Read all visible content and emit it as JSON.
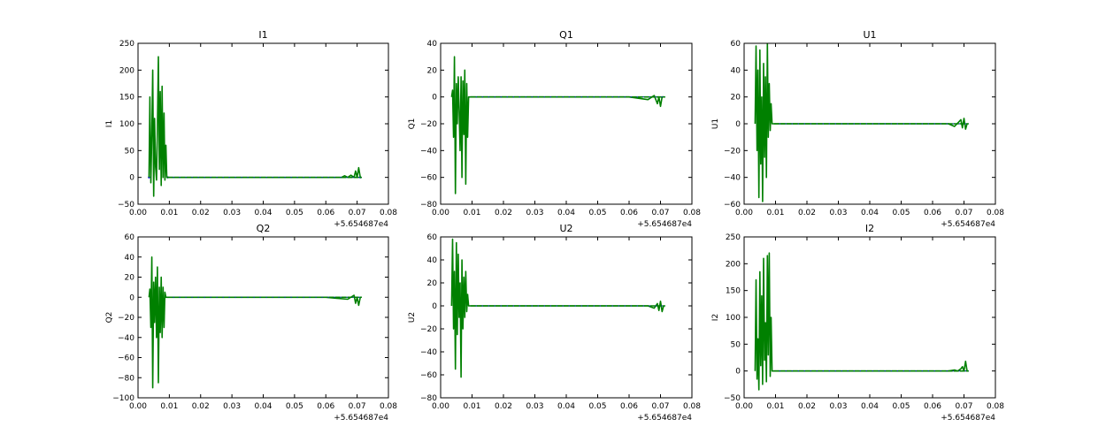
{
  "chart_data": [
    {
      "type": "line",
      "title": "I1",
      "ylabel": "I1",
      "xlabel": "",
      "x_offset_label": "+5.654687e4",
      "xlim": [
        0.0,
        0.08
      ],
      "ylim": [
        -50,
        250
      ],
      "xticks": [
        "0.00",
        "0.01",
        "0.02",
        "0.03",
        "0.04",
        "0.05",
        "0.06",
        "0.07",
        "0.08"
      ],
      "yticks": [
        "−50",
        "0",
        "50",
        "100",
        "150",
        "200",
        "250"
      ],
      "grid": false,
      "series": [
        {
          "color": "#0000ff",
          "style": "points",
          "x": [
            0.0035,
            0.0095,
            0.071
          ],
          "y": [
            0,
            0,
            0
          ],
          "note_hidden": false
        },
        {
          "color": "#008000",
          "style": "line",
          "x": [
            0.0035,
            0.0038,
            0.0041,
            0.0044,
            0.0047,
            0.005,
            0.0053,
            0.0056,
            0.0059,
            0.0062,
            0.0065,
            0.0068,
            0.0071,
            0.0074,
            0.0077,
            0.008,
            0.0083,
            0.0086,
            0.0089,
            0.0092,
            0.0095,
            0.02,
            0.04,
            0.06,
            0.065,
            0.066,
            0.067,
            0.068,
            0.069,
            0.0695,
            0.07,
            0.0705,
            0.071
          ],
          "y": [
            0,
            150,
            -10,
            80,
            200,
            -35,
            110,
            20,
            -5,
            90,
            225,
            15,
            160,
            -15,
            170,
            0,
            120,
            -5,
            60,
            0,
            0,
            0,
            0,
            0,
            0,
            3,
            0,
            4,
            0,
            12,
            0,
            18,
            0
          ]
        }
      ]
    },
    {
      "type": "line",
      "title": "Q1",
      "ylabel": "Q1",
      "xlabel": "",
      "x_offset_label": "+5.654687e4",
      "xlim": [
        0.0,
        0.08
      ],
      "ylim": [
        -80,
        40
      ],
      "xticks": [
        "0.00",
        "0.01",
        "0.02",
        "0.03",
        "0.04",
        "0.05",
        "0.06",
        "0.07",
        "0.08"
      ],
      "yticks": [
        "−80",
        "−60",
        "−40",
        "−20",
        "0",
        "20",
        "40"
      ],
      "grid": false,
      "series": [
        {
          "color": "#008000",
          "style": "line",
          "x": [
            0.0035,
            0.0038,
            0.0041,
            0.0044,
            0.0047,
            0.005,
            0.0053,
            0.0056,
            0.0059,
            0.0062,
            0.0065,
            0.0068,
            0.0071,
            0.0074,
            0.0077,
            0.008,
            0.0083,
            0.0086,
            0.0089,
            0.0095,
            0.02,
            0.04,
            0.06,
            0.066,
            0.068,
            0.069,
            0.0695,
            0.07,
            0.0705,
            0.071
          ],
          "y": [
            0,
            5,
            -30,
            30,
            -72,
            10,
            -20,
            15,
            -10,
            -40,
            15,
            -60,
            12,
            -28,
            20,
            -65,
            10,
            -30,
            0,
            0,
            0,
            0,
            0,
            -2,
            1,
            -5,
            0,
            -7,
            0,
            0
          ]
        }
      ]
    },
    {
      "type": "line",
      "title": "U1",
      "ylabel": "U1",
      "xlabel": "",
      "x_offset_label": "+5.654687e4",
      "xlim": [
        0.0,
        0.08
      ],
      "ylim": [
        -60,
        60
      ],
      "xticks": [
        "0.00",
        "0.01",
        "0.02",
        "0.03",
        "0.04",
        "0.05",
        "0.06",
        "0.07",
        "0.08"
      ],
      "yticks": [
        "−60",
        "−40",
        "−20",
        "0",
        "20",
        "40",
        "60"
      ],
      "grid": false,
      "series": [
        {
          "color": "#008000",
          "style": "line",
          "x": [
            0.0035,
            0.0038,
            0.0041,
            0.0044,
            0.0047,
            0.005,
            0.0053,
            0.0056,
            0.0059,
            0.0062,
            0.0065,
            0.0068,
            0.0071,
            0.0074,
            0.0077,
            0.008,
            0.0083,
            0.0086,
            0.0089,
            0.0095,
            0.02,
            0.04,
            0.06,
            0.065,
            0.067,
            0.069,
            0.0695,
            0.07,
            0.0705,
            0.071
          ],
          "y": [
            0,
            58,
            -20,
            40,
            -55,
            55,
            -30,
            20,
            -58,
            45,
            -25,
            35,
            -40,
            60,
            -10,
            30,
            -5,
            15,
            0,
            0,
            0,
            0,
            0,
            0,
            -2,
            3,
            -3,
            4,
            -4,
            0
          ]
        }
      ]
    },
    {
      "type": "line",
      "title": "Q2",
      "ylabel": "Q2",
      "xlabel": "",
      "x_offset_label": "+5.654687e4",
      "xlim": [
        0.0,
        0.08
      ],
      "ylim": [
        -100,
        60
      ],
      "xticks": [
        "0.00",
        "0.01",
        "0.02",
        "0.03",
        "0.04",
        "0.05",
        "0.06",
        "0.07",
        "0.08"
      ],
      "yticks": [
        "−100",
        "−80",
        "−60",
        "−40",
        "−20",
        "0",
        "20",
        "40",
        "60"
      ],
      "grid": false,
      "series": [
        {
          "color": "#008000",
          "style": "line",
          "x": [
            0.0035,
            0.0038,
            0.0041,
            0.0044,
            0.0047,
            0.005,
            0.0053,
            0.0056,
            0.0059,
            0.0062,
            0.0065,
            0.0068,
            0.0071,
            0.0074,
            0.0077,
            0.008,
            0.0083,
            0.0086,
            0.0089,
            0.0095,
            0.02,
            0.04,
            0.06,
            0.067,
            0.069,
            0.0695,
            0.07,
            0.0705,
            0.071
          ],
          "y": [
            0,
            8,
            -30,
            40,
            -90,
            15,
            -25,
            20,
            -40,
            30,
            -85,
            10,
            -35,
            20,
            -40,
            10,
            -30,
            5,
            0,
            0,
            0,
            0,
            0,
            -2,
            2,
            -6,
            0,
            -8,
            0
          ]
        }
      ]
    },
    {
      "type": "line",
      "title": "U2",
      "ylabel": "U2",
      "xlabel": "",
      "x_offset_label": "+5.654687e4",
      "xlim": [
        0.0,
        0.08
      ],
      "ylim": [
        -80,
        60
      ],
      "xticks": [
        "0.00",
        "0.01",
        "0.02",
        "0.03",
        "0.04",
        "0.05",
        "0.06",
        "0.07",
        "0.08"
      ],
      "yticks": [
        "−80",
        "−60",
        "−40",
        "−20",
        "0",
        "20",
        "40",
        "60"
      ],
      "grid": false,
      "series": [
        {
          "color": "#008000",
          "style": "line",
          "x": [
            0.0035,
            0.0038,
            0.0041,
            0.0044,
            0.0047,
            0.005,
            0.0053,
            0.0056,
            0.0059,
            0.0062,
            0.0065,
            0.0068,
            0.0071,
            0.0074,
            0.0077,
            0.008,
            0.0083,
            0.0086,
            0.0089,
            0.0095,
            0.02,
            0.04,
            0.06,
            0.066,
            0.068,
            0.069,
            0.0695,
            0.07,
            0.0705,
            0.071
          ],
          "y": [
            0,
            58,
            -20,
            30,
            -55,
            55,
            -25,
            45,
            -10,
            20,
            -62,
            40,
            -20,
            25,
            -10,
            30,
            -5,
            10,
            0,
            0,
            0,
            0,
            0,
            0,
            -2,
            2,
            -4,
            4,
            -5,
            0
          ]
        }
      ]
    },
    {
      "type": "line",
      "title": "I2",
      "ylabel": "I2",
      "xlabel": "",
      "x_offset_label": "+5.654687e4",
      "xlim": [
        0.0,
        0.08
      ],
      "ylim": [
        -50,
        250
      ],
      "xticks": [
        "0.00",
        "0.01",
        "0.02",
        "0.03",
        "0.04",
        "0.05",
        "0.06",
        "0.07",
        "0.08"
      ],
      "yticks": [
        "−50",
        "0",
        "50",
        "100",
        "150",
        "200",
        "250"
      ],
      "grid": false,
      "series": [
        {
          "color": "#008000",
          "style": "line",
          "x": [
            0.0035,
            0.0038,
            0.0041,
            0.0044,
            0.0047,
            0.005,
            0.0053,
            0.0056,
            0.0059,
            0.0062,
            0.0065,
            0.0068,
            0.0071,
            0.0074,
            0.0077,
            0.008,
            0.0083,
            0.0086,
            0.0089,
            0.0095,
            0.02,
            0.04,
            0.06,
            0.065,
            0.067,
            0.068,
            0.069,
            0.0695,
            0.07,
            0.0705,
            0.071
          ],
          "y": [
            0,
            170,
            -15,
            60,
            -35,
            185,
            10,
            140,
            -25,
            210,
            20,
            90,
            -20,
            215,
            30,
            220,
            -10,
            100,
            0,
            0,
            0,
            0,
            0,
            0,
            2,
            0,
            4,
            8,
            0,
            18,
            0
          ]
        }
      ]
    }
  ]
}
